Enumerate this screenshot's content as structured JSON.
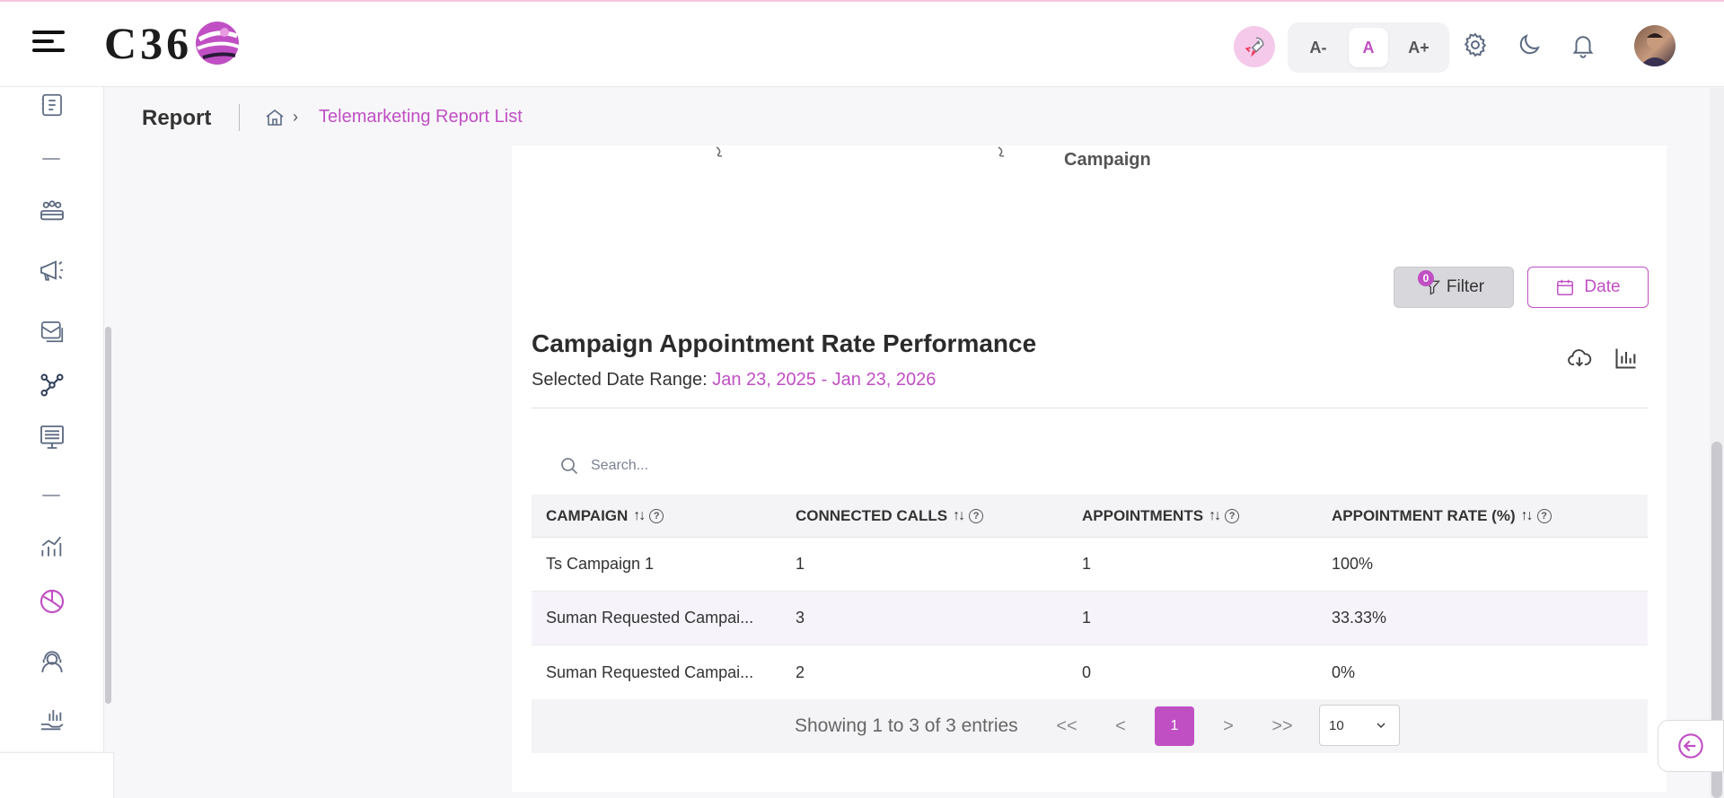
{
  "header": {
    "logo_text": "C36",
    "font_small": "A-",
    "font_normal": "A",
    "font_large": "A+",
    "icons": [
      "menu-icon",
      "rocket-icon",
      "gear-icon",
      "moon-icon",
      "bell-icon"
    ]
  },
  "sidebar": {
    "icons": [
      "billing-icon",
      "group-icon",
      "megaphone-icon",
      "mail-icon",
      "network-icon",
      "monitor-icon",
      "analytics-icon",
      "pie-chart-icon",
      "support-agent-icon",
      "hand-chart-icon"
    ],
    "active": "pie-chart-icon"
  },
  "breadcrumb": {
    "title": "Report",
    "current": "Telemarketing Report List"
  },
  "chart_remnant": {
    "label": "Campaign"
  },
  "toolbar": {
    "filter_label": "Filter",
    "filter_count": "0",
    "date_label": "Date"
  },
  "section": {
    "title": "Campaign Appointment Rate Performance",
    "date_range_label": "Selected Date Range:",
    "date_range_value": "Jan 23, 2025 - Jan 23, 2026"
  },
  "search": {
    "placeholder": "Search..."
  },
  "table": {
    "headers": [
      "CAMPAIGN",
      "CONNECTED CALLS",
      "APPOINTMENTS",
      "APPOINTMENT RATE (%)"
    ],
    "rows": [
      [
        "Ts Campaign 1",
        "1",
        "1",
        "100%"
      ],
      [
        "Suman Requested Campai...",
        "3",
        "1",
        "33.33%"
      ],
      [
        "Suman Requested Campai...",
        "2",
        "0",
        "0%"
      ]
    ]
  },
  "pagination": {
    "summary": "Showing 1 to 3 of 3 entries",
    "first": "<<",
    "prev": "<",
    "current_page": "1",
    "next": ">",
    "last": ">>",
    "per_page": "10"
  },
  "colors": {
    "accent": "#c04fc4"
  }
}
